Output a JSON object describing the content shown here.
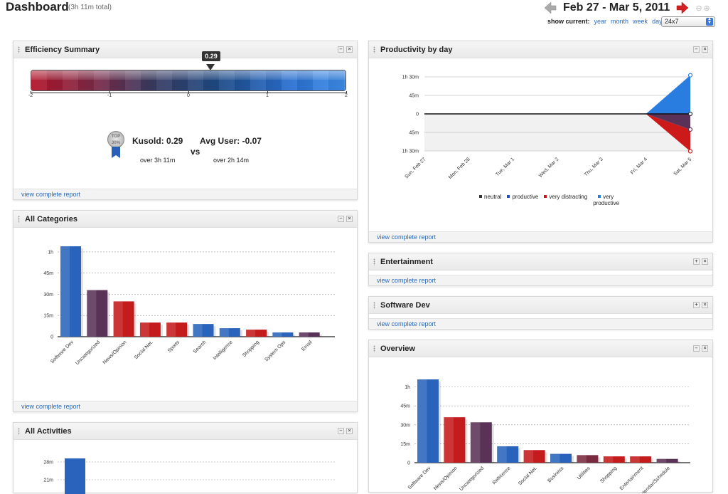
{
  "header": {
    "title": "Dashboard",
    "subtitle": "(3h 11m total)",
    "date_range": "Feb 27 - Mar 5, 2011",
    "show_current_label": "show current:",
    "periods": [
      "year",
      "month",
      "week",
      "day"
    ],
    "range_select": "24x7"
  },
  "panel_controls": {
    "minimize": "–",
    "close": "×",
    "expand": "+"
  },
  "footer_link": "view complete report",
  "efficiency": {
    "title": "Efficiency Summary",
    "value_label": "0.29",
    "value": 0.29,
    "scale_min": -2,
    "scale_max": 2,
    "ticks": [
      "-2",
      "-1",
      "0",
      "1",
      "2"
    ],
    "medal_text": "TOP 30%",
    "user_label": "Kusold: 0.29",
    "user_time": "over 3h 11m",
    "vs": "vs",
    "avg_label": "Avg User: -0.07",
    "avg_time": "over 2h 14m"
  },
  "all_categories": {
    "title": "All Categories",
    "chart_data": {
      "type": "bar",
      "categories": [
        "Software Dev",
        "Uncategorized",
        "News/Opinion",
        "Social Net.",
        "Sports",
        "Search",
        "Intelligence",
        "Shopping",
        "System Ops",
        "Email"
      ],
      "values": [
        64,
        33,
        25,
        10,
        10,
        9,
        6,
        5,
        3,
        3
      ],
      "colors": [
        "#2a63bb",
        "#5b3257",
        "#c41c1c",
        "#c41c1c",
        "#c41c1c",
        "#2a63bb",
        "#2a63bb",
        "#c41c1c",
        "#2a63bb",
        "#5b3257"
      ],
      "y_ticks": [
        "0",
        "15m",
        "30m",
        "45m",
        "1h"
      ],
      "y_tick_values": [
        0,
        15,
        30,
        45,
        60
      ],
      "ylim": [
        0,
        64
      ]
    }
  },
  "all_activities": {
    "title": "All Activities",
    "chart_data": {
      "type": "bar",
      "y_ticks": [
        "21m",
        "28m"
      ],
      "y_tick_values": [
        21,
        28
      ],
      "values": [
        29
      ],
      "colors": [
        "#2a63bb"
      ]
    }
  },
  "productivity": {
    "title": "Productivity by day",
    "chart_data": {
      "type": "area",
      "x": [
        "Sun, Feb 27",
        "Mon, Feb 28",
        "Tue, Mar 1",
        "Wed, Mar 2",
        "Thu, Mar 3",
        "Fri, Mar 4",
        "Sat, Mar 5"
      ],
      "y_ticks_above": [
        "0",
        "45m",
        "1h 30m"
      ],
      "y_ticks_below": [
        "45m",
        "1h 30m"
      ],
      "series": [
        {
          "name": "neutral",
          "color": "#333333",
          "values": [
            0,
            0,
            0,
            0,
            0,
            0,
            1
          ]
        },
        {
          "name": "productive",
          "color": "#2a4fb8",
          "values": [
            0,
            0,
            0,
            0,
            0,
            0,
            0
          ]
        },
        {
          "name": "very distracting",
          "color": "#cc1a1a",
          "values": [
            0,
            0,
            0,
            0,
            0,
            0,
            -91
          ]
        },
        {
          "name": "very productive",
          "color": "#2a7de0",
          "values": [
            0,
            0,
            0,
            0,
            0,
            0,
            94
          ]
        }
      ],
      "distracting_values": [
        0,
        0,
        0,
        0,
        0,
        0,
        -38
      ],
      "ylim": [
        -90,
        90
      ]
    }
  },
  "entertainment": {
    "title": "Entertainment"
  },
  "software_dev": {
    "title": "Software Dev"
  },
  "overview": {
    "title": "Overview",
    "chart_data": {
      "type": "bar",
      "categories": [
        "Software Dev",
        "News/Opinion",
        "Uncategorized",
        "Reference",
        "Social Net.",
        "Business",
        "Utilities",
        "Shopping",
        "Entertainment",
        "Calendar/Schedule"
      ],
      "values": [
        66,
        36,
        32,
        13,
        10,
        7,
        6,
        5,
        5,
        3
      ],
      "colors": [
        "#2a63bb",
        "#c41c1c",
        "#5b3257",
        "#2a63bb",
        "#c41c1c",
        "#2a63bb",
        "#7a2a40",
        "#c41c1c",
        "#c41c1c",
        "#5b3257"
      ],
      "y_ticks": [
        "0",
        "15m",
        "30m",
        "45m",
        "1h"
      ],
      "y_tick_values": [
        0,
        15,
        30,
        45,
        60
      ],
      "ylim": [
        0,
        66
      ]
    }
  }
}
